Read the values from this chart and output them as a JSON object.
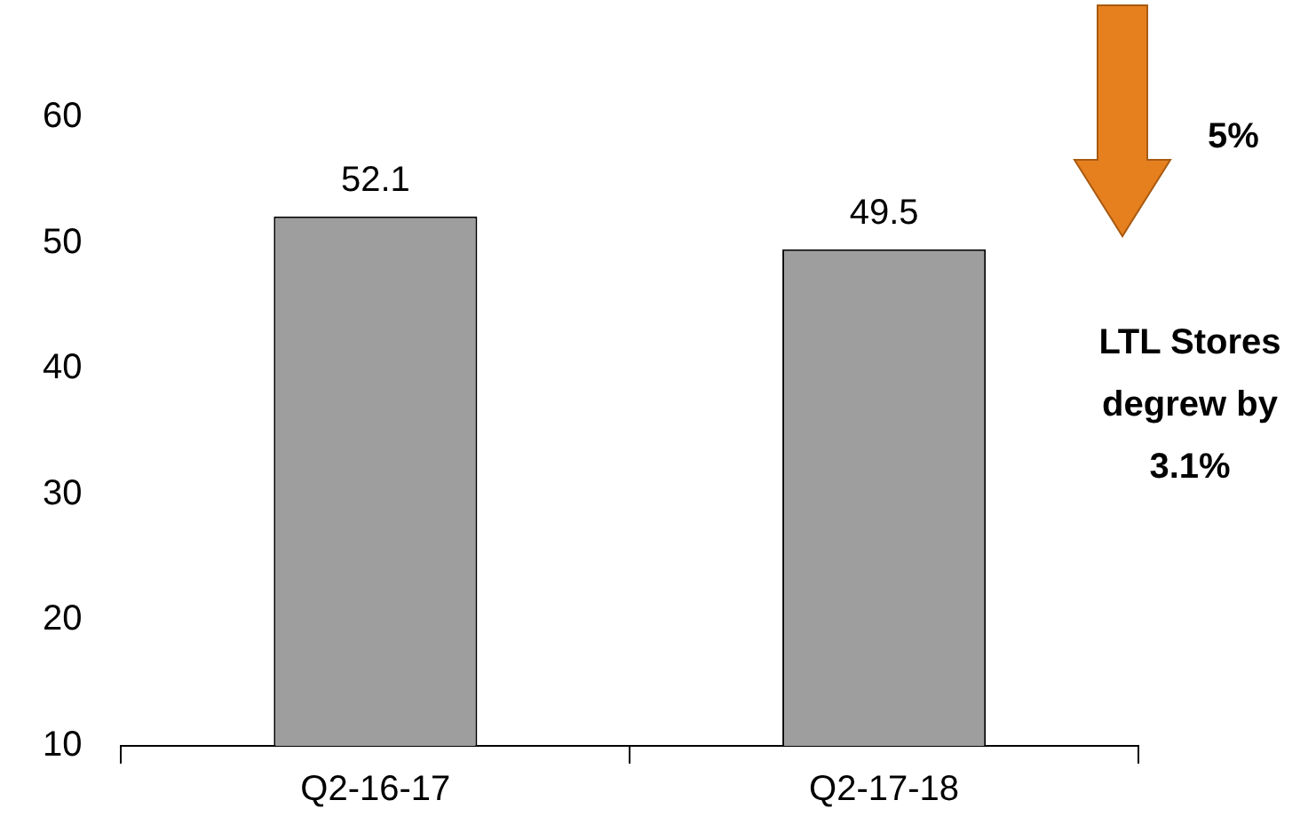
{
  "chart_data": {
    "type": "bar",
    "categories": [
      "Q2-16-17",
      "Q2-17-18"
    ],
    "values": [
      52.1,
      49.5
    ],
    "color": "#9e9e9e",
    "ylim": [
      10,
      60
    ],
    "yticks": [
      10,
      20,
      30,
      40,
      50,
      60
    ],
    "data_labels": true,
    "annotations": [
      "5%",
      "LTL Stores degrew by 3.1%"
    ]
  }
}
